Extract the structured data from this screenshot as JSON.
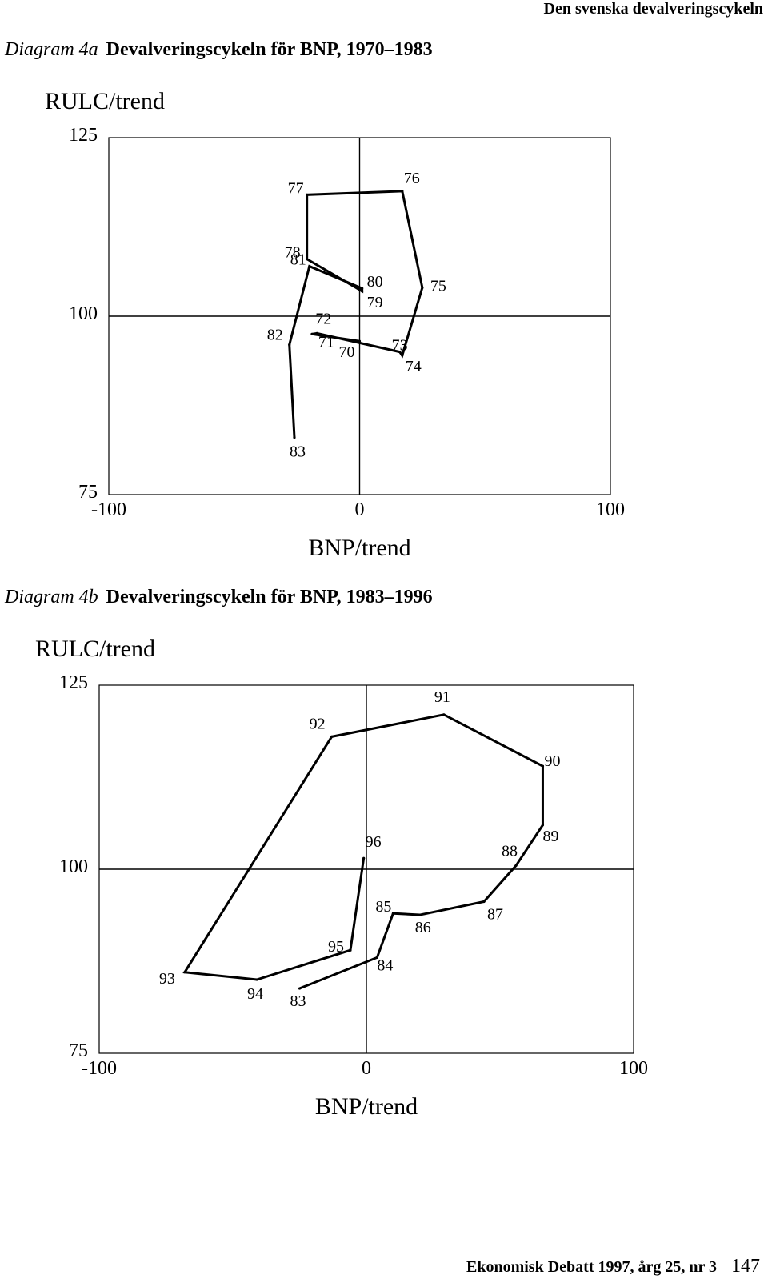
{
  "running_head": "Den svenska devalveringscykeln",
  "footer": {
    "journal": "Ekonomisk Debatt 1997, årg 25, nr 3",
    "page": "147"
  },
  "charts": [
    {
      "number": "Diagram 4a",
      "title": "Devalveringscykeln för BNP, 1970–1983"
    },
    {
      "number": "Diagram 4b",
      "title": "Devalveringscykeln för BNP, 1983–1996"
    }
  ],
  "chart_data": [
    {
      "type": "line",
      "ylabel": "RULC/trend",
      "xlabel": "BNP/trend",
      "xlim": [
        -100,
        100
      ],
      "ylim": [
        75,
        125
      ],
      "x_ticks": [
        "-100",
        "0",
        "100"
      ],
      "y_ticks": [
        "75",
        "100",
        "125"
      ],
      "reference_lines": {
        "x": 0,
        "y": 100
      },
      "grid": false,
      "points": [
        {
          "label": "70",
          "x": 0,
          "y": 96.5
        },
        {
          "label": "71",
          "x": -19,
          "y": 97.5
        },
        {
          "label": "72",
          "x": -17,
          "y": 97.6
        },
        {
          "label": "73",
          "x": 16,
          "y": 95
        },
        {
          "label": "74",
          "x": 17,
          "y": 94.5
        },
        {
          "label": "75",
          "x": 25,
          "y": 104
        },
        {
          "label": "76",
          "x": 17,
          "y": 117.5
        },
        {
          "label": "77",
          "x": -21,
          "y": 117
        },
        {
          "label": "78",
          "x": -21,
          "y": 108
        },
        {
          "label": "79",
          "x": 1,
          "y": 103.5
        },
        {
          "label": "80",
          "x": 1,
          "y": 103.9
        },
        {
          "label": "81",
          "x": -20,
          "y": 107
        },
        {
          "label": "82",
          "x": -28,
          "y": 96
        },
        {
          "label": "83",
          "x": -26,
          "y": 83
        }
      ]
    },
    {
      "type": "line",
      "ylabel": "RULC/trend",
      "xlabel": "BNP/trend",
      "xlim": [
        -100,
        100
      ],
      "ylim": [
        75,
        125
      ],
      "x_ticks": [
        "-100",
        "0",
        "100"
      ],
      "y_ticks": [
        "75",
        "100",
        "125"
      ],
      "reference_lines": {
        "x": 0,
        "y": 100
      },
      "grid": false,
      "points": [
        {
          "label": "83",
          "x": -25,
          "y": 83.8
        },
        {
          "label": "84",
          "x": 4,
          "y": 88
        },
        {
          "label": "85",
          "x": 10,
          "y": 94
        },
        {
          "label": "86",
          "x": 20,
          "y": 93.8
        },
        {
          "label": "87",
          "x": 44,
          "y": 95.6
        },
        {
          "label": "88",
          "x": 56,
          "y": 100.5
        },
        {
          "label": "89",
          "x": 66,
          "y": 106
        },
        {
          "label": "90",
          "x": 66,
          "y": 114
        },
        {
          "label": "91",
          "x": 29,
          "y": 121
        },
        {
          "label": "92",
          "x": -13,
          "y": 118
        },
        {
          "label": "93",
          "x": -68,
          "y": 86
        },
        {
          "label": "94",
          "x": -41,
          "y": 85
        },
        {
          "label": "95",
          "x": -6,
          "y": 89
        },
        {
          "label": "96",
          "x": -1,
          "y": 101.5
        }
      ]
    }
  ]
}
